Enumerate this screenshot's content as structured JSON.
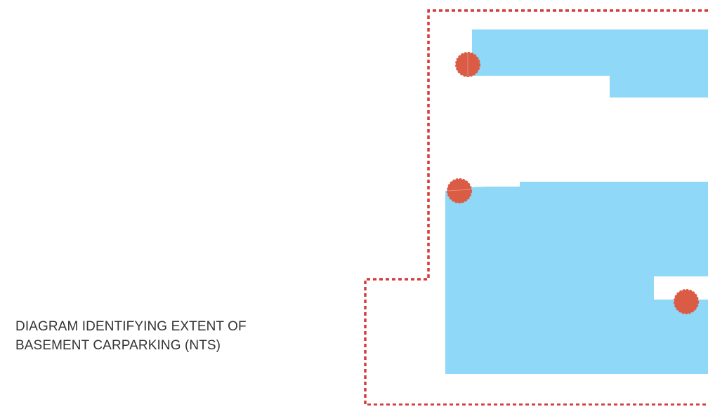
{
  "caption": {
    "line1": "DIAGRAM IDENTIFYING EXTENT OF",
    "line2": "BASEMENT CARPARKING (NTS)"
  },
  "colors": {
    "boundary": "#d63a3a",
    "basement_area": "#8fd8f7",
    "marker": "#db5c44",
    "caption_text": "#333333"
  },
  "legend_items": {
    "boundary_style": "dashed red line",
    "basement_area": "light blue fill",
    "markers": "red circles"
  }
}
